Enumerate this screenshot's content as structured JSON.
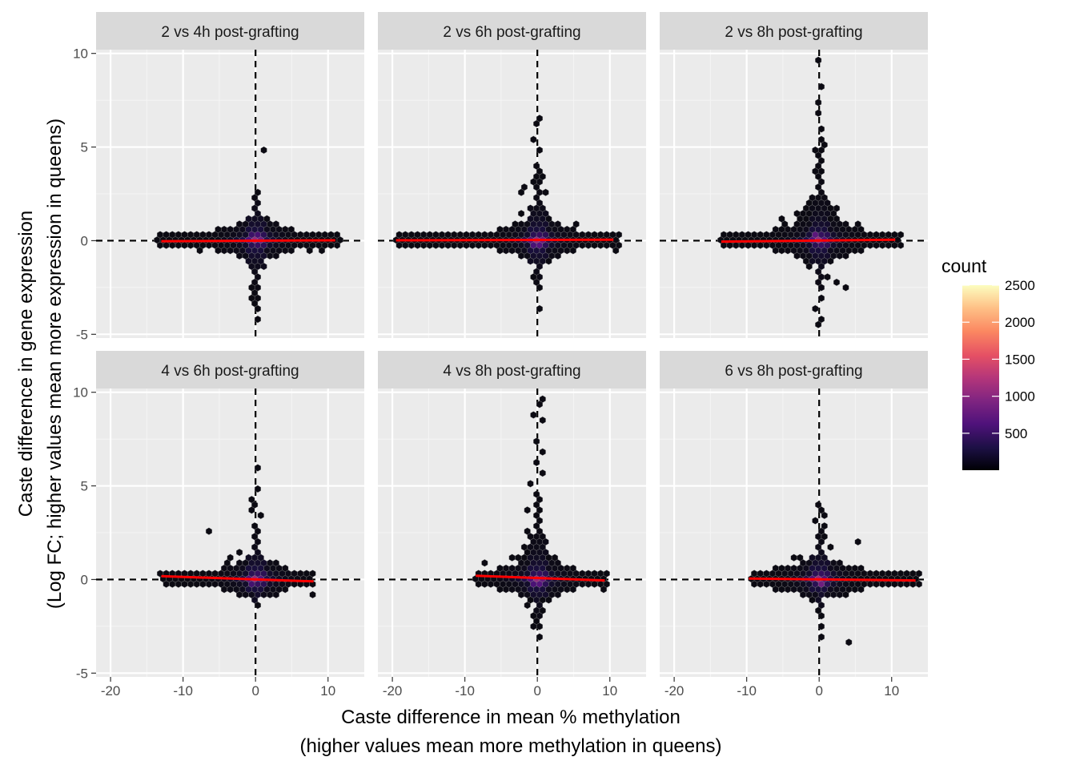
{
  "chart_data": {
    "type": "hexbin",
    "xlabel_lines": [
      "Caste difference in mean % methylation",
      "(higher values mean more methylation in queens)"
    ],
    "ylabel_lines": [
      "Caste difference in gene expression",
      "(Log FC; higher values mean more expression in queens)"
    ],
    "xlim": [
      -22,
      15
    ],
    "ylim": [
      -5.2,
      10.2
    ],
    "x_ticks": [
      -20,
      -10,
      0,
      10
    ],
    "x_tick_labels": [
      "-20",
      "-10",
      "0",
      "10"
    ],
    "y_ticks": [
      -5,
      0,
      5,
      10
    ],
    "y_tick_labels": [
      "-5",
      "0",
      "5",
      "10"
    ],
    "reference_lines": {
      "x": 0,
      "y": 0,
      "style": "dashed",
      "color": "#000000"
    },
    "grid": true,
    "legend": {
      "title": "count",
      "position": "right",
      "colormap": "magma",
      "range": [
        1,
        2500
      ],
      "breaks": [
        500,
        1000,
        1500,
        2000,
        2500
      ],
      "break_labels": [
        "500",
        "1000",
        "1500",
        "2000",
        "2500"
      ]
    },
    "panels": [
      {
        "title": "2 vs 4h post-grafting",
        "x_range": [
          -13.5,
          11.5
        ],
        "fit_line": {
          "x": [
            -13,
            11
          ],
          "y": [
            -0.03,
            0.02
          ],
          "color": "#ff0000"
        },
        "horizontal_points": [
          [
            -13.3,
            -0.05
          ],
          [
            -11.2,
            -0.3
          ],
          [
            11.3,
            0.1
          ],
          [
            -9.2,
            0.15
          ],
          [
            -8.1,
            -0.5
          ],
          [
            7.6,
            -0.4
          ],
          [
            9.4,
            -0.55
          ],
          [
            -6.2,
            0.45
          ],
          [
            6.0,
            0.4
          ]
        ],
        "vertical_points": [
          [
            0.0,
            2.5
          ],
          [
            0.4,
            2.1
          ],
          [
            -0.5,
            1.7
          ],
          [
            0.3,
            1.3
          ],
          [
            -0.3,
            1.0
          ],
          [
            1.0,
            4.8
          ],
          [
            0.1,
            -1.9
          ],
          [
            -0.4,
            -2.4
          ],
          [
            0.3,
            -2.9
          ],
          [
            -0.5,
            -3.1
          ],
          [
            0.0,
            -3.6
          ],
          [
            0.3,
            -4.1
          ],
          [
            -0.3,
            -3.3
          ],
          [
            1.0,
            -1.4
          ],
          [
            -1.0,
            -1.2
          ]
        ],
        "core": {
          "spread_x": 3.0,
          "spread_y_pos": 1.2,
          "spread_y_neg": 1.2,
          "vert_pos": 2.5,
          "vert_neg": 3.2
        }
      },
      {
        "title": "2 vs 6h post-grafting",
        "x_range": [
          -20,
          11
        ],
        "fit_line": {
          "x": [
            -19.5,
            10.5
          ],
          "y": [
            0.02,
            0.05
          ],
          "color": "#ff0000"
        },
        "horizontal_points": [
          [
            -19.5,
            0.05
          ],
          [
            10.8,
            -0.5
          ],
          [
            -11.8,
            0.1
          ],
          [
            9.0,
            0.25
          ],
          [
            5.0,
            0.95
          ],
          [
            -8.2,
            -0.3
          ],
          [
            7.4,
            -0.35
          ]
        ],
        "vertical_points": [
          [
            0.0,
            6.6
          ],
          [
            0.0,
            6.2
          ],
          [
            -0.8,
            5.3
          ],
          [
            0.3,
            4.7
          ],
          [
            -0.3,
            3.9
          ],
          [
            0.4,
            3.5
          ],
          [
            -0.5,
            3.1
          ],
          [
            -2.2,
            3.0
          ],
          [
            -1.9,
            2.6
          ],
          [
            -2.5,
            1.5
          ],
          [
            -3.0,
            0.8
          ],
          [
            0.2,
            -2.5
          ],
          [
            0.5,
            -3.6
          ],
          [
            -0.5,
            -2.0
          ],
          [
            0.0,
            -1.6
          ],
          [
            0.8,
            2.6
          ]
        ],
        "core": {
          "spread_x": 3.0,
          "spread_y_pos": 1.5,
          "spread_y_neg": 1.3,
          "vert_pos": 3.8,
          "vert_neg": 2.3
        }
      },
      {
        "title": "2 vs 8h post-grafting",
        "x_range": [
          -14,
          11.5
        ],
        "fit_line": {
          "x": [
            -13.5,
            10.5
          ],
          "y": [
            -0.05,
            0.05
          ],
          "color": "#ff0000"
        },
        "horizontal_points": [
          [
            -13.9,
            -0.1
          ],
          [
            -12.6,
            0.1
          ],
          [
            11.2,
            0.1
          ],
          [
            -10.0,
            0.35
          ],
          [
            -8.2,
            -0.25
          ],
          [
            -5.3,
            1.1
          ],
          [
            -4.6,
            0.9
          ],
          [
            5.4,
            0.85
          ],
          [
            3.5,
            -2.5
          ],
          [
            2.6,
            -2.1
          ]
        ],
        "vertical_points": [
          [
            0.2,
            9.5
          ],
          [
            0.0,
            8.1
          ],
          [
            -0.2,
            7.5
          ],
          [
            0.3,
            6.7
          ],
          [
            0.0,
            6.0
          ],
          [
            0.5,
            5.3
          ],
          [
            -0.5,
            4.9
          ],
          [
            1.0,
            5.1
          ],
          [
            0.0,
            4.2
          ],
          [
            -0.3,
            3.6
          ],
          [
            0.4,
            -2.5
          ],
          [
            0.0,
            -3.0
          ],
          [
            -0.3,
            -3.6
          ],
          [
            0.1,
            -4.3
          ],
          [
            0.0,
            -4.6
          ],
          [
            0.8,
            -1.8
          ],
          [
            -1.2,
            -1.5
          ]
        ],
        "core": {
          "spread_x": 3.5,
          "spread_y_pos": 2.2,
          "spread_y_neg": 1.5,
          "vert_pos": 5.0,
          "vert_neg": 2.6
        }
      },
      {
        "title": "4 vs 6h post-grafting",
        "x_range": [
          -13,
          8.3
        ],
        "fit_line": {
          "x": [
            -13,
            8
          ],
          "y": [
            0.18,
            -0.1
          ],
          "color": "#ff0000"
        },
        "horizontal_points": [
          [
            -13.0,
            0.3
          ],
          [
            -11.4,
            0.05
          ],
          [
            -9.1,
            -0.15
          ],
          [
            8.1,
            -0.7
          ],
          [
            -6.3,
            2.7
          ],
          [
            -4.0,
            0.9
          ],
          [
            -3.6,
            1.3
          ],
          [
            -2.0,
            1.5
          ],
          [
            6.2,
            0.2
          ]
        ],
        "vertical_points": [
          [
            0.2,
            6.1
          ],
          [
            0.0,
            4.9
          ],
          [
            -0.2,
            4.4
          ],
          [
            0.1,
            3.9
          ],
          [
            -0.4,
            3.6
          ],
          [
            0.4,
            3.3
          ],
          [
            -0.3,
            2.9
          ],
          [
            0.1,
            -1.3
          ],
          [
            -0.2,
            -1.0
          ],
          [
            0.5,
            -0.9
          ]
        ],
        "core": {
          "spread_x": 2.8,
          "spread_y_pos": 1.3,
          "spread_y_neg": 0.8,
          "vert_pos": 2.7,
          "vert_neg": 1.2
        }
      },
      {
        "title": "4 vs 8h post-grafting",
        "x_range": [
          -9,
          9.5
        ],
        "fit_line": {
          "x": [
            -8.5,
            9.3
          ],
          "y": [
            0.2,
            -0.05
          ],
          "color": "#ff0000"
        },
        "horizontal_points": [
          [
            -8.7,
            0.1
          ],
          [
            9.2,
            -0.6
          ],
          [
            -7.2,
            0.75
          ],
          [
            -6.1,
            0.45
          ],
          [
            -4.4,
            0.7
          ],
          [
            -3.5,
            1.2
          ],
          [
            -2.4,
            1.3
          ],
          [
            -2.0,
            1.6
          ],
          [
            6.4,
            0.3
          ],
          [
            2.4,
            0.9
          ],
          [
            5.2,
            -0.35
          ]
        ],
        "vertical_points": [
          [
            0.8,
            9.5
          ],
          [
            0.0,
            9.3
          ],
          [
            -0.2,
            8.8
          ],
          [
            0.4,
            8.4
          ],
          [
            0.1,
            7.4
          ],
          [
            0.4,
            6.7
          ],
          [
            -0.3,
            6.2
          ],
          [
            0.6,
            5.7
          ],
          [
            -0.6,
            5.1
          ],
          [
            0.3,
            4.6
          ],
          [
            -0.5,
            4.1
          ],
          [
            0.2,
            -2.1
          ],
          [
            -0.5,
            -1.8
          ],
          [
            0.0,
            -2.6
          ],
          [
            0.2,
            -3.0
          ],
          [
            -0.3,
            -2.4
          ],
          [
            0.9,
            -1.6
          ],
          [
            -1.1,
            -1.4
          ],
          [
            -1.6,
            3.6
          ],
          [
            -1.3,
            2.7
          ]
        ],
        "core": {
          "spread_x": 3.0,
          "spread_y_pos": 1.8,
          "spread_y_neg": 1.3,
          "vert_pos": 4.6,
          "vert_neg": 2.0
        }
      },
      {
        "title": "6 vs 8h post-grafting",
        "x_range": [
          -10,
          13.5
        ],
        "fit_line": {
          "x": [
            -9.7,
            13.3
          ],
          "y": [
            0.05,
            -0.05
          ],
          "color": "#ff0000"
        },
        "horizontal_points": [
          [
            -9.7,
            -0.1
          ],
          [
            13.5,
            0.25
          ],
          [
            12.7,
            -0.05
          ],
          [
            11.3,
            -0.3
          ],
          [
            -7.6,
            0.25
          ],
          [
            -5.6,
            0.55
          ],
          [
            -3.9,
            1.1
          ],
          [
            -2.9,
            1.3
          ],
          [
            5.6,
            1.9
          ],
          [
            3.6,
            -0.9
          ],
          [
            4.2,
            -3.4
          ],
          [
            6.8,
            -0.3
          ]
        ],
        "vertical_points": [
          [
            0.0,
            4.1
          ],
          [
            0.0,
            3.6
          ],
          [
            0.5,
            3.4
          ],
          [
            -0.3,
            3.1
          ],
          [
            0.7,
            2.8
          ],
          [
            -0.5,
            2.4
          ],
          [
            1.0,
            2.2
          ],
          [
            0.2,
            -1.9
          ],
          [
            -0.3,
            -1.6
          ],
          [
            0.1,
            -2.4
          ],
          [
            0.0,
            -3.1
          ],
          [
            0.4,
            -1.3
          ],
          [
            -0.8,
            -1.2
          ],
          [
            1.2,
            1.6
          ]
        ],
        "core": {
          "spread_x": 3.3,
          "spread_y_pos": 1.4,
          "spread_y_neg": 1.0,
          "vert_pos": 2.6,
          "vert_neg": 1.6
        }
      }
    ]
  },
  "colors": {
    "panel_background": "#ebebeb",
    "grid_major": "#ffffff",
    "strip_background": "#d9d9d9",
    "fit_line": "#ff0000",
    "hex_low": "#0b0a12",
    "hex_outline": "#888888"
  }
}
